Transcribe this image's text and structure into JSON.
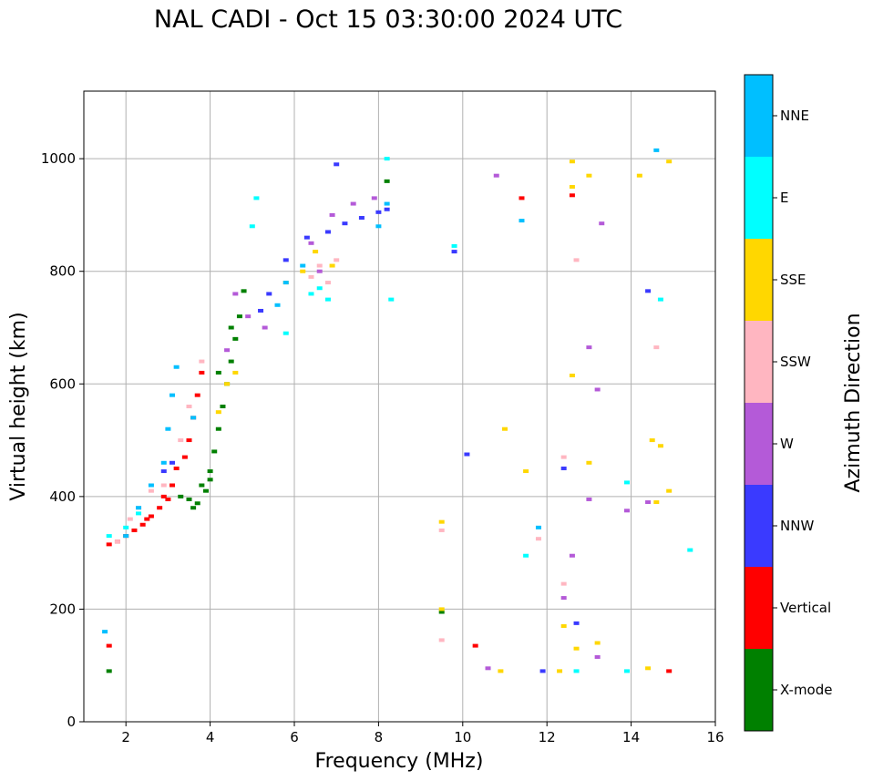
{
  "chart_data": {
    "type": "scatter",
    "title": "NAL CADI - Oct 15 03:30:00 2024 UTC",
    "xlabel": "Frequency (MHz)",
    "ylabel": "Virtual height (km)",
    "xlim": [
      1,
      16
    ],
    "ylim": [
      0,
      1120
    ],
    "xticks": [
      2,
      4,
      6,
      8,
      10,
      12,
      14,
      16
    ],
    "yticks": [
      0,
      200,
      400,
      600,
      800,
      1000
    ],
    "grid": true,
    "colorbar": {
      "label": "Azimuth Direction",
      "categories": [
        "X-mode",
        "Vertical",
        "NNW",
        "W",
        "SSW",
        "SSE",
        "E",
        "NNE"
      ],
      "colors": [
        "#008000",
        "#ff0000",
        "#3a3aff",
        "#b45ad8",
        "#ffb6c1",
        "#ffd700",
        "#00ffff",
        "#00bfff"
      ]
    },
    "series": [
      {
        "name": "X-mode",
        "points": [
          [
            3.3,
            400
          ],
          [
            3.5,
            395
          ],
          [
            3.7,
            388
          ],
          [
            3.8,
            420
          ],
          [
            4.0,
            445
          ],
          [
            4.1,
            480
          ],
          [
            4.2,
            520
          ],
          [
            4.3,
            560
          ],
          [
            4.4,
            600
          ],
          [
            4.5,
            640
          ],
          [
            4.6,
            680
          ],
          [
            4.7,
            720
          ],
          [
            4.8,
            765
          ],
          [
            4.0,
            430
          ],
          [
            3.9,
            410
          ],
          [
            4.5,
            700
          ],
          [
            8.2,
            960
          ],
          [
            9.5,
            195
          ],
          [
            1.6,
            90
          ],
          [
            4.2,
            620
          ],
          [
            3.6,
            380
          ]
        ]
      },
      {
        "name": "Vertical",
        "points": [
          [
            1.6,
            315
          ],
          [
            1.8,
            320
          ],
          [
            2.0,
            330
          ],
          [
            2.2,
            340
          ],
          [
            2.4,
            350
          ],
          [
            2.6,
            365
          ],
          [
            2.8,
            380
          ],
          [
            3.0,
            395
          ],
          [
            3.1,
            420
          ],
          [
            3.2,
            450
          ],
          [
            3.4,
            470
          ],
          [
            3.5,
            500
          ],
          [
            3.6,
            540
          ],
          [
            3.7,
            580
          ],
          [
            3.8,
            620
          ],
          [
            1.6,
            135
          ],
          [
            10.3,
            135
          ],
          [
            12.6,
            935
          ],
          [
            14.9,
            90
          ],
          [
            11.4,
            930
          ],
          [
            2.5,
            360
          ],
          [
            2.9,
            400
          ]
        ]
      },
      {
        "name": "NNW",
        "points": [
          [
            2.9,
            445
          ],
          [
            3.1,
            460
          ],
          [
            5.2,
            730
          ],
          [
            5.4,
            760
          ],
          [
            5.8,
            820
          ],
          [
            6.3,
            860
          ],
          [
            6.8,
            870
          ],
          [
            7.2,
            885
          ],
          [
            7.6,
            895
          ],
          [
            8.0,
            905
          ],
          [
            8.2,
            910
          ],
          [
            10.1,
            475
          ],
          [
            12.7,
            175
          ],
          [
            14.4,
            765
          ],
          [
            9.8,
            835
          ],
          [
            11.9,
            90
          ],
          [
            7.0,
            990
          ],
          [
            12.4,
            450
          ]
        ]
      },
      {
        "name": "W",
        "points": [
          [
            4.6,
            760
          ],
          [
            4.9,
            720
          ],
          [
            5.3,
            700
          ],
          [
            6.4,
            850
          ],
          [
            6.6,
            800
          ],
          [
            6.9,
            900
          ],
          [
            7.4,
            920
          ],
          [
            7.9,
            930
          ],
          [
            13.0,
            665
          ],
          [
            13.2,
            590
          ],
          [
            13.0,
            395
          ],
          [
            12.6,
            295
          ],
          [
            13.2,
            115
          ],
          [
            12.4,
            220
          ],
          [
            14.4,
            390
          ],
          [
            13.9,
            375
          ],
          [
            10.6,
            95
          ],
          [
            10.8,
            970
          ],
          [
            13.3,
            885
          ],
          [
            4.4,
            660
          ]
        ]
      },
      {
        "name": "SSW",
        "points": [
          [
            1.8,
            320
          ],
          [
            2.1,
            360
          ],
          [
            2.3,
            380
          ],
          [
            2.6,
            410
          ],
          [
            2.9,
            420
          ],
          [
            3.5,
            560
          ],
          [
            3.8,
            640
          ],
          [
            6.4,
            790
          ],
          [
            6.6,
            810
          ],
          [
            6.8,
            780
          ],
          [
            7.0,
            820
          ],
          [
            9.5,
            340
          ],
          [
            9.5,
            145
          ],
          [
            12.7,
            820
          ],
          [
            12.4,
            470
          ],
          [
            11.8,
            325
          ],
          [
            14.6,
            665
          ],
          [
            12.4,
            245
          ],
          [
            3.3,
            500
          ]
        ]
      },
      {
        "name": "SSE",
        "points": [
          [
            4.2,
            550
          ],
          [
            4.4,
            600
          ],
          [
            4.6,
            620
          ],
          [
            5.8,
            780
          ],
          [
            6.2,
            800
          ],
          [
            6.5,
            835
          ],
          [
            6.9,
            810
          ],
          [
            9.5,
            355
          ],
          [
            12.6,
            995
          ],
          [
            12.6,
            950
          ],
          [
            13.0,
            970
          ],
          [
            14.2,
            970
          ],
          [
            14.9,
            995
          ],
          [
            14.5,
            500
          ],
          [
            14.7,
            490
          ],
          [
            14.9,
            410
          ],
          [
            14.6,
            390
          ],
          [
            12.6,
            615
          ],
          [
            13.0,
            460
          ],
          [
            12.4,
            170
          ],
          [
            12.7,
            130
          ],
          [
            13.2,
            140
          ],
          [
            14.4,
            95
          ],
          [
            11.0,
            520
          ],
          [
            11.5,
            445
          ],
          [
            9.5,
            200
          ],
          [
            10.9,
            90
          ],
          [
            12.3,
            90
          ]
        ]
      },
      {
        "name": "E",
        "points": [
          [
            1.6,
            330
          ],
          [
            2.0,
            345
          ],
          [
            2.3,
            370
          ],
          [
            5.0,
            880
          ],
          [
            5.1,
            930
          ],
          [
            5.8,
            690
          ],
          [
            6.4,
            760
          ],
          [
            6.6,
            770
          ],
          [
            6.8,
            750
          ],
          [
            8.2,
            1000
          ],
          [
            8.3,
            750
          ],
          [
            14.7,
            750
          ],
          [
            15.4,
            305
          ],
          [
            11.5,
            295
          ],
          [
            13.9,
            425
          ],
          [
            13.9,
            90
          ],
          [
            12.7,
            90
          ],
          [
            9.8,
            845
          ]
        ]
      },
      {
        "name": "NNE",
        "points": [
          [
            2.0,
            330
          ],
          [
            2.3,
            380
          ],
          [
            2.6,
            420
          ],
          [
            2.9,
            460
          ],
          [
            3.0,
            520
          ],
          [
            3.1,
            580
          ],
          [
            3.2,
            630
          ],
          [
            5.6,
            740
          ],
          [
            5.8,
            780
          ],
          [
            6.2,
            810
          ],
          [
            8.2,
            920
          ],
          [
            8.0,
            880
          ],
          [
            11.4,
            890
          ],
          [
            11.8,
            345
          ],
          [
            14.6,
            1015
          ],
          [
            1.5,
            160
          ],
          [
            3.6,
            540
          ]
        ]
      }
    ]
  }
}
